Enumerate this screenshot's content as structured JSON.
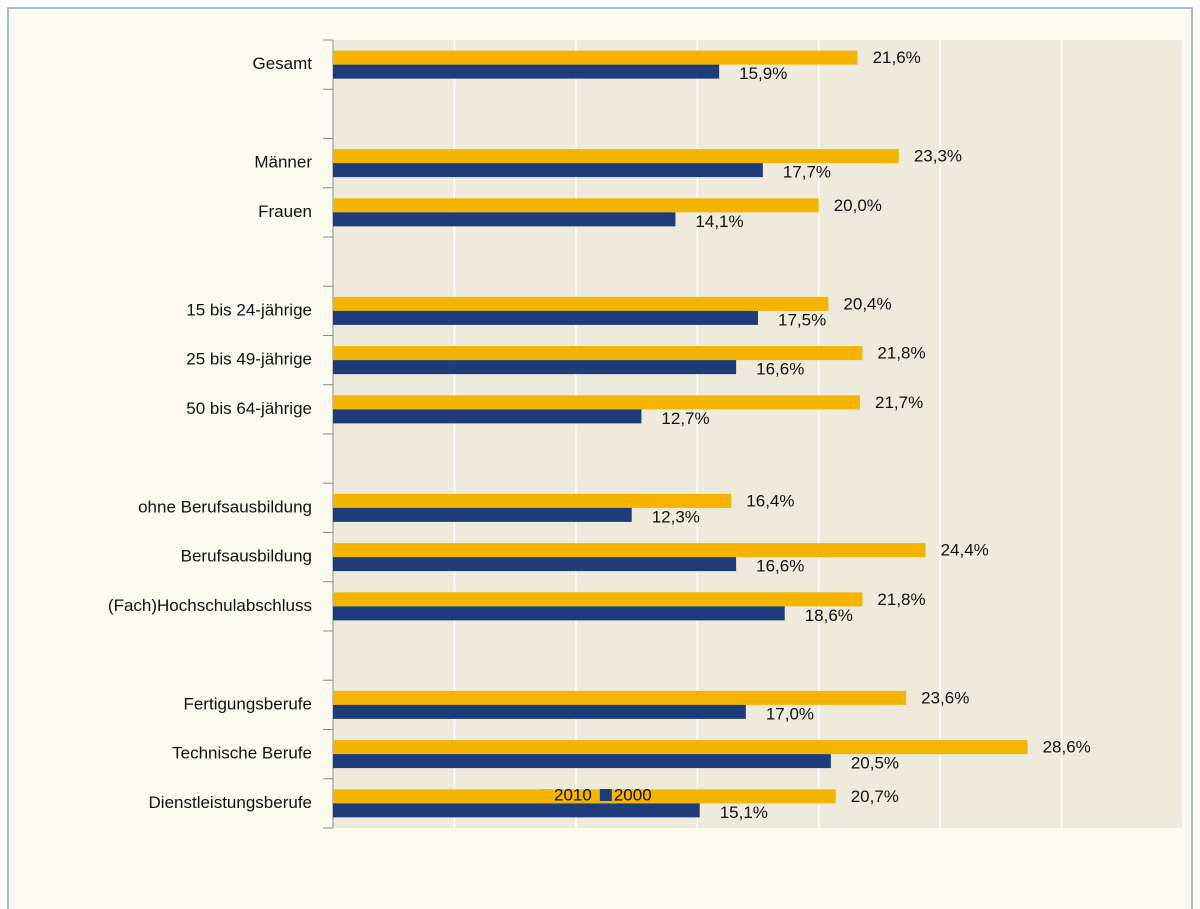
{
  "chart_data": {
    "type": "bar",
    "orientation": "horizontal",
    "categories": [
      "Gesamt",
      null,
      "Männer",
      "Frauen",
      null,
      "15 bis 24-jährige",
      "25 bis 49-jährige",
      "50 bis 64-jährige",
      null,
      "ohne Berufsausbildung",
      "Berufsausbildung",
      "(Fach)Hochschulabschluss",
      null,
      "Fertigungsberufe",
      "Technische Berufe",
      "Dienstleistungsberufe"
    ],
    "series": [
      {
        "name": "2010",
        "color": "#f5b400",
        "values": [
          21.6,
          null,
          23.3,
          20.0,
          null,
          20.4,
          21.8,
          21.7,
          null,
          16.4,
          24.4,
          21.8,
          null,
          23.6,
          28.6,
          20.7
        ],
        "value_labels": [
          "21,6%",
          null,
          "23,3%",
          "20,0%",
          null,
          "20,4%",
          "21,8%",
          "21,7%",
          null,
          "16,4%",
          "24,4%",
          "21,8%",
          null,
          "23,6%",
          "28,6%",
          "20,7%"
        ]
      },
      {
        "name": "2000",
        "color": "#1f3c7a",
        "values": [
          15.9,
          null,
          17.7,
          14.1,
          null,
          17.5,
          16.6,
          12.7,
          null,
          12.3,
          16.6,
          18.6,
          null,
          17.0,
          20.5,
          15.1
        ],
        "value_labels": [
          "15,9%",
          null,
          "17,7%",
          "14,1%",
          null,
          "17,5%",
          "16,6%",
          "12,7%",
          null,
          "12,3%",
          "16,6%",
          "18,6%",
          null,
          "17,0%",
          "20,5%",
          "15,1%"
        ]
      }
    ],
    "xlim": [
      0,
      35
    ],
    "xticks": [
      0,
      5,
      10,
      15,
      20,
      25,
      30,
      35
    ],
    "grid": true,
    "legend": "bottom"
  }
}
